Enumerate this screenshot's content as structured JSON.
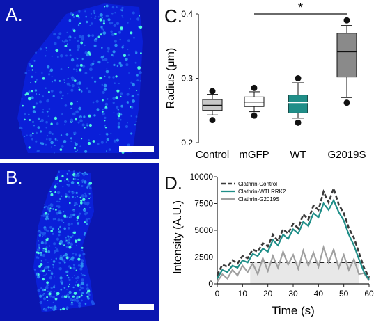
{
  "panels": {
    "a_label": "A.",
    "b_label": "B.",
    "c_label": "C.",
    "d_label": "D."
  },
  "colors": {
    "micro_bg": "#0a1fd8",
    "spot": "#4cf4e0",
    "control_box": "#c8c8c8",
    "mgfp_box": "#ffffff",
    "wt_box": "#1f8e88",
    "g2019s_box": "#8a8a8a",
    "control_line": "#3a3a3a",
    "wt_line": "#1f8e88",
    "g2019s_line": "#a0a0a0"
  },
  "chart_data": [
    {
      "type": "box",
      "ylabel": "Radius (μm)",
      "ylim": [
        0.2,
        0.4
      ],
      "yticks": [
        "0.2",
        "0.3",
        "0.4"
      ],
      "categories": [
        "Control",
        "mGFP",
        "WT",
        "G2019S"
      ],
      "boxes": [
        {
          "whisker_low": 0.243,
          "q1": 0.25,
          "median": 0.258,
          "q3": 0.267,
          "whisker_high": 0.275,
          "outlier_low": 0.235,
          "outlier_high": 0.28
        },
        {
          "whisker_low": 0.248,
          "q1": 0.256,
          "median": 0.263,
          "q3": 0.271,
          "whisker_high": 0.279,
          "outlier_low": 0.242,
          "outlier_high": 0.285
        },
        {
          "whisker_low": 0.238,
          "q1": 0.246,
          "median": 0.262,
          "q3": 0.274,
          "whisker_high": 0.293,
          "outlier_low": 0.231,
          "outlier_high": 0.3
        },
        {
          "whisker_low": 0.27,
          "q1": 0.302,
          "median": 0.341,
          "q3": 0.37,
          "whisker_high": 0.382,
          "outlier_low": 0.262,
          "outlier_high": 0.39
        }
      ],
      "significance": {
        "from": "mGFP",
        "to": "G2019S",
        "label": "*"
      }
    },
    {
      "type": "line",
      "xlabel": "Time (s)",
      "ylabel": "Intensity (A.U.)",
      "xlim": [
        0,
        60
      ],
      "ylim": [
        0,
        10000
      ],
      "xticks": [
        "0",
        "10",
        "20",
        "30",
        "40",
        "50",
        "60"
      ],
      "yticks": [
        "0",
        "2500",
        "5000",
        "7500",
        "10000"
      ],
      "legend": [
        "Clathrin-Control",
        "Clathrin-WTLRRK2",
        "Clathrin-G2019S"
      ],
      "legend_position": "top-left",
      "series": [
        {
          "name": "Clathrin-Control",
          "style": "dashed",
          "x": [
            0,
            2,
            4,
            6,
            8,
            10,
            12,
            14,
            16,
            18,
            20,
            22,
            24,
            26,
            28,
            30,
            32,
            34,
            36,
            38,
            40,
            42,
            44,
            46,
            48,
            50,
            52,
            54,
            56,
            58,
            60
          ],
          "y": [
            800,
            1800,
            1600,
            2200,
            1900,
            2600,
            2400,
            3200,
            3000,
            3800,
            3500,
            4600,
            4000,
            5100,
            4700,
            5600,
            5200,
            6500,
            6000,
            7300,
            6900,
            8600,
            7600,
            8900,
            7400,
            6600,
            5200,
            4300,
            2900,
            1500,
            600
          ]
        },
        {
          "name": "Clathrin-WTLRRK2",
          "style": "solid",
          "x": [
            0,
            2,
            4,
            6,
            8,
            10,
            12,
            14,
            16,
            18,
            20,
            22,
            24,
            26,
            28,
            30,
            32,
            34,
            36,
            38,
            40,
            42,
            44,
            46,
            48,
            50,
            52,
            54,
            56,
            58,
            60
          ],
          "y": [
            500,
            1300,
            1100,
            1700,
            1500,
            2200,
            2000,
            2800,
            2600,
            3300,
            3000,
            4100,
            3600,
            4600,
            4200,
            5100,
            4700,
            5800,
            5400,
            6600,
            6200,
            7500,
            6900,
            7800,
            6700,
            5900,
            4600,
            3600,
            2300,
            1100,
            400
          ]
        },
        {
          "name": "Clathrin-G2019S",
          "style": "solid",
          "x": [
            0,
            2,
            4,
            6,
            8,
            10,
            12,
            14,
            16,
            18,
            20,
            22,
            24,
            26,
            28,
            30,
            32,
            34,
            36,
            38,
            40,
            42,
            44,
            46,
            48,
            50,
            52,
            54,
            56,
            58,
            60
          ],
          "y": [
            200,
            900,
            500,
            1300,
            800,
            1700,
            1100,
            1900,
            900,
            2400,
            1200,
            2600,
            1500,
            3000,
            1800,
            2700,
            1400,
            3100,
            1700,
            2900,
            1600,
            3400,
            2000,
            3200,
            1500,
            2700,
            1300,
            2300,
            900,
            1000,
            300
          ]
        },
        {
          "name": "Clathrin-G2019S",
          "style": "shaded-baseline",
          "x": [
            13,
            56
          ],
          "y": [
            2000,
            2000
          ]
        }
      ]
    }
  ]
}
